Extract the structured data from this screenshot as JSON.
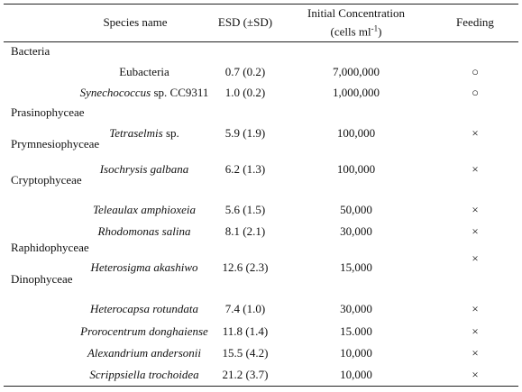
{
  "header": {
    "species": "Species name",
    "esd": "ESD (±SD)",
    "concentration": "Initial Concentration",
    "concentration_unit": [
      "(cells ml",
      "-1",
      ")"
    ],
    "feeding": "Feeding"
  },
  "groups": [
    {
      "name": "Bacteria",
      "species": [
        {
          "name_italic": "",
          "name_plain": "Eubacteria",
          "esd": "0.7 (0.2)",
          "concentration": "7,000,000",
          "feeding": "○"
        },
        {
          "name_italic": "Synechococcus",
          "name_plain": "sp. CC9311",
          "esd": "1.0 (0.2)",
          "concentration": "1,000,000",
          "feeding": "○"
        }
      ]
    },
    {
      "name": "Prasinophyceae",
      "species": [
        {
          "name_italic": "Tetraselmis",
          "name_plain": "sp.",
          "esd": "5.9 (1.9)",
          "concentration": "100,000",
          "feeding": "×"
        }
      ]
    },
    {
      "name": "Prymnesiophyceae",
      "species": [
        {
          "name_italic": "Isochrysis galbana",
          "name_plain": "",
          "esd": "6.2 (1.3)",
          "concentration": "100,000",
          "feeding": "×"
        }
      ]
    },
    {
      "name": "Cryptophyceae",
      "species": [
        {
          "name_italic": "Teleaulax amphioxeia",
          "name_plain": "",
          "esd": "5.6 (1.5)",
          "concentration": "50,000",
          "feeding": "×"
        },
        {
          "name_italic": "Rhodomonas salina",
          "name_plain": "",
          "esd": "8.1 (2.1)",
          "concentration": "30,000",
          "feeding": "×"
        }
      ]
    },
    {
      "name": "Raphidophyceae",
      "species": [
        {
          "name_italic": "Heterosigma akashiwo",
          "name_plain": "",
          "esd": "12.6 (2.3)",
          "concentration": "15,000",
          "feeding": "×"
        }
      ]
    },
    {
      "name": "Dinophyceae",
      "species": [
        {
          "name_italic": "Heterocapsa rotundata",
          "name_plain": "",
          "esd": "7.4 (1.0)",
          "concentration": "30,000",
          "feeding": "×"
        },
        {
          "name_italic": "Prorocentrum donghaiense",
          "name_plain": "",
          "esd": "11.8 (1.4)",
          "concentration": "15.000",
          "feeding": "×"
        },
        {
          "name_italic": "Alexandrium andersonii",
          "name_plain": "",
          "esd": "15.5 (4.2)",
          "concentration": "10,000",
          "feeding": "×"
        },
        {
          "name_italic": "Scrippsiella trochoidea",
          "name_plain": "",
          "esd": "21.2 (3.7)",
          "concentration": "10,000",
          "feeding": "×"
        }
      ]
    }
  ]
}
